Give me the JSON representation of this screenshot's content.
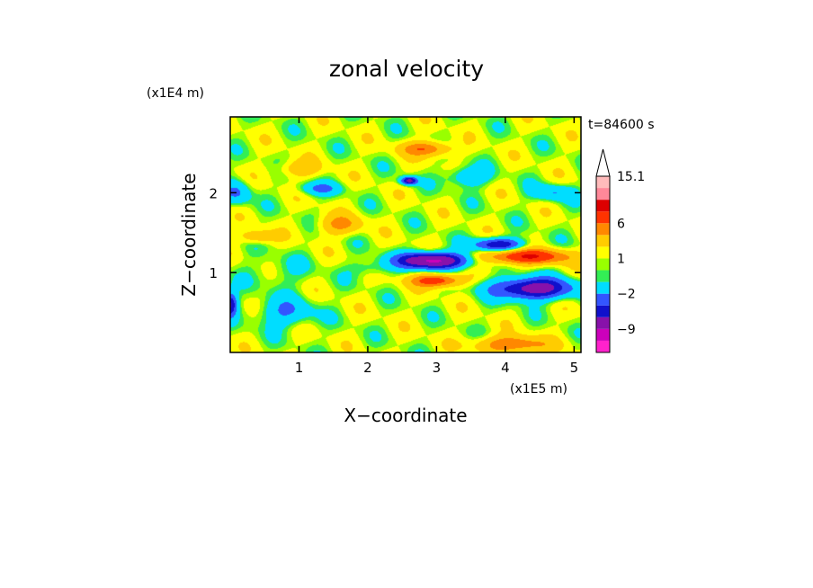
{
  "chart_data": {
    "type": "heatmap",
    "title": "zonal velocity",
    "xlabel": "X−coordinate",
    "ylabel": "Z−coordinate",
    "x_unit_label": "(x1E5 m)",
    "y_unit_label": "(x1E4 m)",
    "time_label": "t=84600 s",
    "xlim": [
      0.0,
      5.1
    ],
    "ylim": [
      0.0,
      2.95
    ],
    "x_ticks": [
      1,
      2,
      3,
      4,
      5
    ],
    "y_ticks": [
      1,
      2
    ],
    "grid": false,
    "colorbar": {
      "levels": [
        -15,
        -12,
        -9,
        -6,
        -4,
        -2,
        0,
        0.5,
        1,
        2,
        4,
        6,
        9,
        12,
        15.1
      ],
      "colors": [
        "#ff22cc",
        "#cc00bb",
        "#8811aa",
        "#1010cc",
        "#3355ff",
        "#00ddff",
        "#33ee55",
        "#99ff00",
        "#ffff00",
        "#ffcc00",
        "#ff8800",
        "#ff3300",
        "#dd0000",
        "#ff8899",
        "#ffbbbb"
      ],
      "tick_labels": [
        "15.1",
        "6",
        "1",
        "−2",
        "−9"
      ],
      "tick_values": [
        15.1,
        6,
        1,
        -2,
        -9
      ],
      "extend": "max"
    },
    "features": [
      {
        "x": 2.95,
        "z": 1.15,
        "value": -11,
        "sx": 0.5,
        "sz": 0.1
      },
      {
        "x": 4.4,
        "z": 0.8,
        "value": -9,
        "sx": 0.55,
        "sz": 0.13
      },
      {
        "x": 3.9,
        "z": 1.35,
        "value": -7,
        "sx": 0.35,
        "sz": 0.08
      },
      {
        "x": 0.0,
        "z": 0.6,
        "value": -7,
        "sx": 0.1,
        "sz": 0.15
      },
      {
        "x": 3.0,
        "z": 0.9,
        "value": 7,
        "sx": 0.35,
        "sz": 0.08
      },
      {
        "x": 4.3,
        "z": 1.2,
        "value": 8,
        "sx": 0.6,
        "sz": 0.09
      },
      {
        "x": 2.85,
        "z": 2.55,
        "value": 5,
        "sx": 0.35,
        "sz": 0.09
      },
      {
        "x": 4.1,
        "z": 0.1,
        "value": 5,
        "sx": 0.5,
        "sz": 0.1
      },
      {
        "x": 0.4,
        "z": 1.45,
        "value": 3,
        "sx": 0.25,
        "sz": 0.08
      },
      {
        "x": 1.6,
        "z": 1.6,
        "value": 3.5,
        "sx": 0.3,
        "sz": 0.12
      },
      {
        "x": 1.0,
        "z": 2.3,
        "value": 2.5,
        "sx": 0.3,
        "sz": 0.1
      },
      {
        "x": 0.8,
        "z": 0.5,
        "value": -3,
        "sx": 0.4,
        "sz": 0.18
      },
      {
        "x": 1.3,
        "z": 2.05,
        "value": -3,
        "sx": 0.3,
        "sz": 0.08
      },
      {
        "x": 0.1,
        "z": 2.0,
        "value": -3,
        "sx": 0.2,
        "sz": 0.15
      },
      {
        "x": 4.7,
        "z": 2.0,
        "value": -3,
        "sx": 0.3,
        "sz": 0.1
      },
      {
        "x": 3.45,
        "z": 2.2,
        "value": -3,
        "sx": 0.3,
        "sz": 0.12
      },
      {
        "x": 2.6,
        "z": 2.15,
        "value": -8,
        "sx": 0.12,
        "sz": 0.05
      },
      {
        "x": 2.05,
        "z": 1.05,
        "value": -1.5,
        "sx": 0.3,
        "sz": 0.1
      },
      {
        "x": 0.7,
        "z": 1.0,
        "value": -1,
        "sx": 0.5,
        "sz": 0.2
      }
    ]
  }
}
